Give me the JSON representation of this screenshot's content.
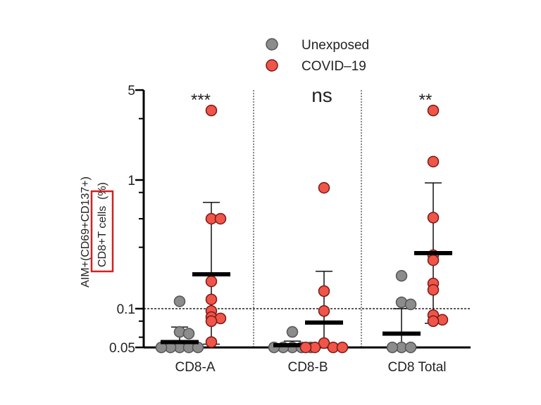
{
  "chart_data": {
    "type": "scatter",
    "title": "",
    "xlabel": "",
    "ylabel_line1": "AIM+(CD69+CD137+)",
    "ylabel_line2_boxed": "CD8+T cells",
    "ylabel_line2_unit": "(%)",
    "yscale": "log",
    "ylim": [
      0.05,
      5
    ],
    "yticks": [
      5,
      1,
      0.1,
      0.05
    ],
    "ytick_labels": [
      "5",
      "1",
      "0.1",
      "0.05"
    ],
    "yminor_ticks": [
      3,
      0.8,
      0.5,
      0.3,
      0.08,
      0.06
    ],
    "reference_line": 0.1,
    "categories": [
      "CD8-A",
      "CD8-B",
      "CD8 Total"
    ],
    "significance": [
      "***",
      "ns",
      "**"
    ],
    "legend": {
      "placement": "top-center",
      "entries": [
        {
          "label": "Unexposed",
          "color": "#8c8c8c"
        },
        {
          "label": "COVID–19",
          "color": "#f0554a"
        }
      ]
    },
    "series": [
      {
        "name": "Unexposed",
        "color": "#8c8c8c",
        "groups": [
          {
            "values": [
              0.114,
              0.066,
              0.064,
              0.05,
              0.05,
              0.05,
              0.05,
              0.05
            ],
            "mean": 0.055,
            "err_high": 0.072,
            "err_low": 0.05
          },
          {
            "values": [
              0.066,
              0.05,
              0.05,
              0.05,
              0.05,
              0.05
            ],
            "mean": 0.052,
            "err_high": 0.056,
            "err_low": 0.05
          },
          {
            "values": [
              0.18,
              0.112,
              0.108,
              0.05,
              0.05,
              0.05
            ],
            "mean": 0.064,
            "err_high": 0.1,
            "err_low": 0.05
          }
        ]
      },
      {
        "name": "COVID–19",
        "color": "#f0554a",
        "groups": [
          {
            "values": [
              3.47,
              0.5,
              0.5,
              0.163,
              0.118,
              0.096,
              0.086,
              0.084,
              0.08,
              0.055
            ],
            "mean": 0.185,
            "err_high": 0.67,
            "err_low": 0.053
          },
          {
            "values": [
              0.87,
              0.137,
              0.096,
              0.054,
              0.05,
              0.05,
              0.05,
              0.05
            ],
            "mean": 0.078,
            "err_high": 0.195,
            "err_low": 0.05
          },
          {
            "values": [
              3.47,
              1.39,
              0.51,
              0.26,
              0.238,
              0.157,
              0.14,
              0.089,
              0.082,
              0.08
            ],
            "mean": 0.27,
            "err_high": 0.95,
            "err_low": 0.077
          }
        ]
      }
    ]
  }
}
